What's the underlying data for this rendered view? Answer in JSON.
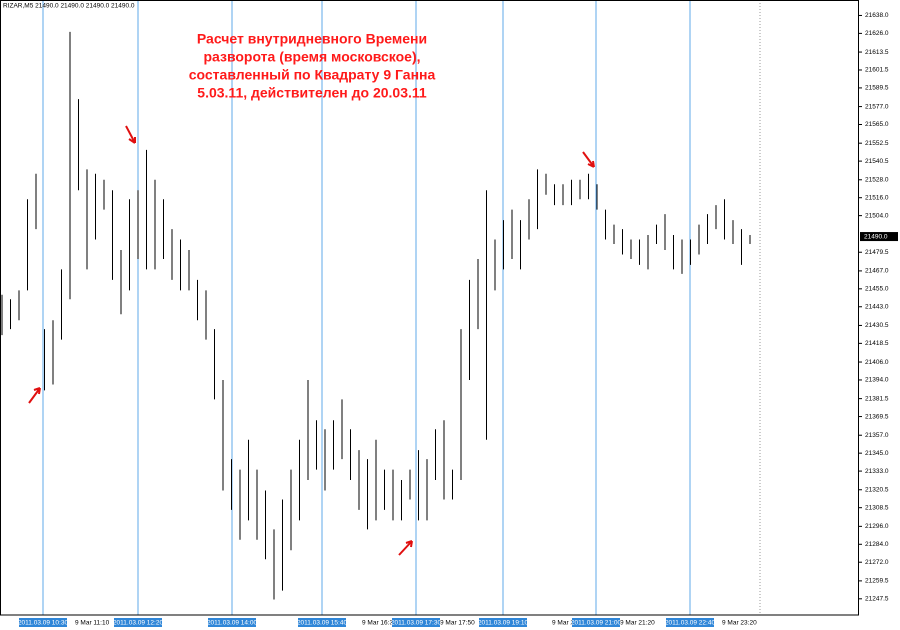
{
  "chart_data": {
    "type": "ohlc",
    "header": "RIZAR,M5  21490.0 21490.0 21490.0 21490.0",
    "annotation": [
      "Расчет внутридневного Времени",
      "разворота (время московское),",
      "составленный по Квадрату 9 Ганна",
      "5.03.11, действителен до 20.03.11"
    ],
    "color": "#000000",
    "high": [
      21451,
      21448,
      21454,
      21515,
      21532,
      21428,
      21434,
      21468,
      21627,
      21582,
      21535,
      21532,
      21528,
      21521,
      21481,
      21515,
      21521,
      21548,
      21528,
      21515,
      21495,
      21488,
      21481,
      21461,
      21454,
      21428,
      21394,
      21341,
      21334,
      21354,
      21334,
      21320,
      21294,
      21314,
      21334,
      21354,
      21394,
      21367,
      21361,
      21367,
      21381,
      21361,
      21347,
      21341,
      21354,
      21334,
      21334,
      21327,
      21334,
      21347,
      21341,
      21361,
      21367,
      21334,
      21428,
      21461,
      21475,
      21521,
      21488,
      21501,
      21508,
      21501,
      21515,
      21535,
      21532,
      21525,
      21525,
      21528,
      21528,
      21532,
      21525,
      21508,
      21498,
      21495,
      21488,
      21488,
      21491,
      21498,
      21505,
      21491,
      21488,
      21488,
      21498,
      21505,
      21511,
      21515,
      21501,
      21495,
      21491
    ],
    "low": [
      21424,
      21428,
      21434,
      21454,
      21495,
      21387,
      21391,
      21421,
      21448,
      21521,
      21468,
      21488,
      21508,
      21461,
      21438,
      21454,
      21475,
      21468,
      21468,
      21475,
      21461,
      21454,
      21454,
      21434,
      21421,
      21381,
      21320,
      21307,
      21287,
      21300,
      21287,
      21274,
      21247,
      21253,
      21280,
      21300,
      21327,
      21334,
      21320,
      21334,
      21341,
      21327,
      21307,
      21294,
      21300,
      21307,
      21300,
      21300,
      21314,
      21300,
      21300,
      21327,
      21314,
      21314,
      21327,
      21394,
      21428,
      21354,
      21454,
      21468,
      21475,
      21468,
      21488,
      21495,
      21518,
      21511,
      21511,
      21511,
      21515,
      21515,
      21508,
      21488,
      21485,
      21478,
      21475,
      21471,
      21468,
      21485,
      21481,
      21468,
      21465,
      21471,
      21478,
      21485,
      21495,
      21488,
      21485,
      21471,
      21485
    ],
    "last_price": {
      "value": 21490,
      "label": "21490.0"
    },
    "ylim": [
      21238,
      21645
    ],
    "yticks": [
      {
        "value": 21638,
        "label": "21638.0"
      },
      {
        "value": 21626,
        "label": "21626.0"
      },
      21613.5,
      21601.5,
      21589.5,
      {
        "value": 21577,
        "label": "21577.0"
      },
      {
        "value": 21565,
        "label": "21565.0"
      },
      21552.5,
      21540.5,
      {
        "value": 21528,
        "label": "21528.0"
      },
      {
        "value": 21516,
        "label": "21516.0"
      },
      {
        "value": 21504,
        "label": "21504.0"
      },
      21479.5,
      {
        "value": 21467,
        "label": "21467.0"
      },
      {
        "value": 21455,
        "label": "21455.0"
      },
      {
        "value": 21443,
        "label": "21443.0"
      },
      21430.5,
      21418.5,
      {
        "value": 21406,
        "label": "21406.0"
      },
      {
        "value": 21394,
        "label": "21394.0"
      },
      21381.5,
      21369.5,
      {
        "value": 21357,
        "label": "21357.0"
      },
      {
        "value": 21345,
        "label": "21345.0"
      },
      {
        "value": 21333,
        "label": "21333.0"
      },
      21320.5,
      21308.5,
      {
        "value": 21296,
        "label": "21296.0"
      },
      {
        "value": 21284,
        "label": "21284.0"
      },
      {
        "value": 21272,
        "label": "21272.0"
      },
      21259.5,
      21247.5
    ],
    "time_labels": [
      "9 Mar 11:10",
      "9 Mar 16:30",
      "9 Mar 17:50",
      "9 Mar 20:00",
      "9 Mar 21:20",
      "9 Mar 23:20"
    ],
    "vertical_lines": [
      "2011.03.09 10:30",
      "2011.03.09 12:20",
      "2011.03.09 14:00",
      "2011.03.09 15:40",
      "2011.03.09 17:30",
      "2011.03.09 19:10",
      "2011.03.09 21:00",
      "2011.03.09 22:40"
    ],
    "vertical_line_color": "#5fa8ea"
  }
}
